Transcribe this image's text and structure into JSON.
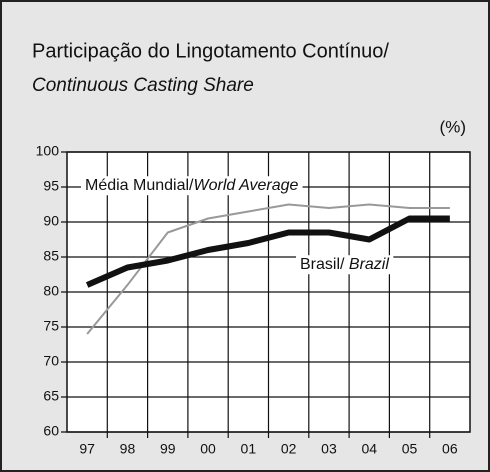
{
  "chart_data": {
    "type": "line",
    "title": "Participação do Lingotamento Contínuo/",
    "subtitle": "Continuous Casting Share",
    "unit_label": "(%)",
    "categories": [
      "97",
      "98",
      "99",
      "00",
      "01",
      "02",
      "03",
      "04",
      "05",
      "06"
    ],
    "series": [
      {
        "name": "Média Mundial/World Average",
        "color": "#999999",
        "values": [
          74,
          81,
          88.5,
          90.5,
          91.5,
          92.5,
          92,
          92.5,
          92,
          92
        ]
      },
      {
        "name": "Brasil/ Brazil",
        "color": "#111111",
        "values": [
          81,
          83.5,
          84.5,
          86,
          87,
          88.5,
          88.5,
          87.5,
          90.5,
          90.5
        ]
      }
    ],
    "ylim": [
      60,
      100
    ],
    "yticks": [
      60,
      65,
      70,
      75,
      80,
      85,
      90,
      95,
      100
    ],
    "grid": true
  }
}
